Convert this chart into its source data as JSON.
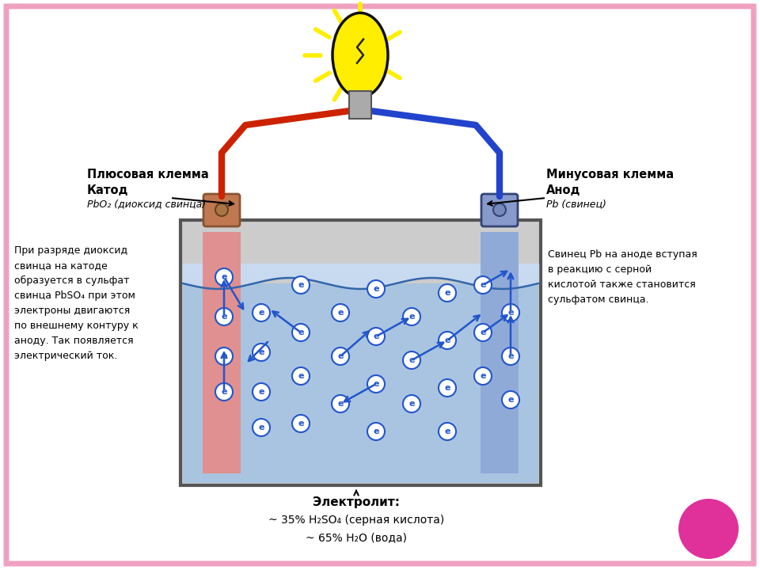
{
  "bg_color": "#ffffff",
  "border_color": "#f0a0c0",
  "title_electrolyte": "Электролит:",
  "electrolyte_line1": "~ 35% H₂SO₄ (серная кислота)",
  "electrolyte_line2": "~ 65% H₂O (вода)",
  "left_label_bold": "Плюсовая клемма",
  "left_label_bold2": "Катод",
  "left_label_italic": "PbO₂ (диоксид свинца)",
  "right_label_bold": "Минусовая клемма",
  "right_label_bold2": "Анод",
  "right_label_italic": "Pb (свинец)",
  "left_text": "При разряде диоксид\nсвинца на катоде\nобразуется в сульфат\nсвинца PbSO₄ при этом\nэлектроны двигаются\nпо внешнему контуру к\nаноду. Так появляется\nэлектрический ток.",
  "right_text": "Свинец Pb на аноде вступая\nв реакцию с серной\nкислотой также становится\nсульфатом свинца.",
  "pink_circle_color": "#e0309a",
  "lamp_yellow": "#ffee00",
  "lamp_outline": "#111111",
  "wire_red": "#cc2200",
  "wire_blue": "#2244cc",
  "battery_box_edge": "#555555",
  "battery_box_fill": "#cccccc",
  "electrolyte_color": "#a8c4e0",
  "electrolyte_top_color": "#c8daf0",
  "cathode_color": "#e09090",
  "anode_color": "#90aad8",
  "electron_color": "#2255cc",
  "arrow_color": "#2255cc",
  "terminal_left_color": "#c07850",
  "terminal_right_color": "#8899cc"
}
